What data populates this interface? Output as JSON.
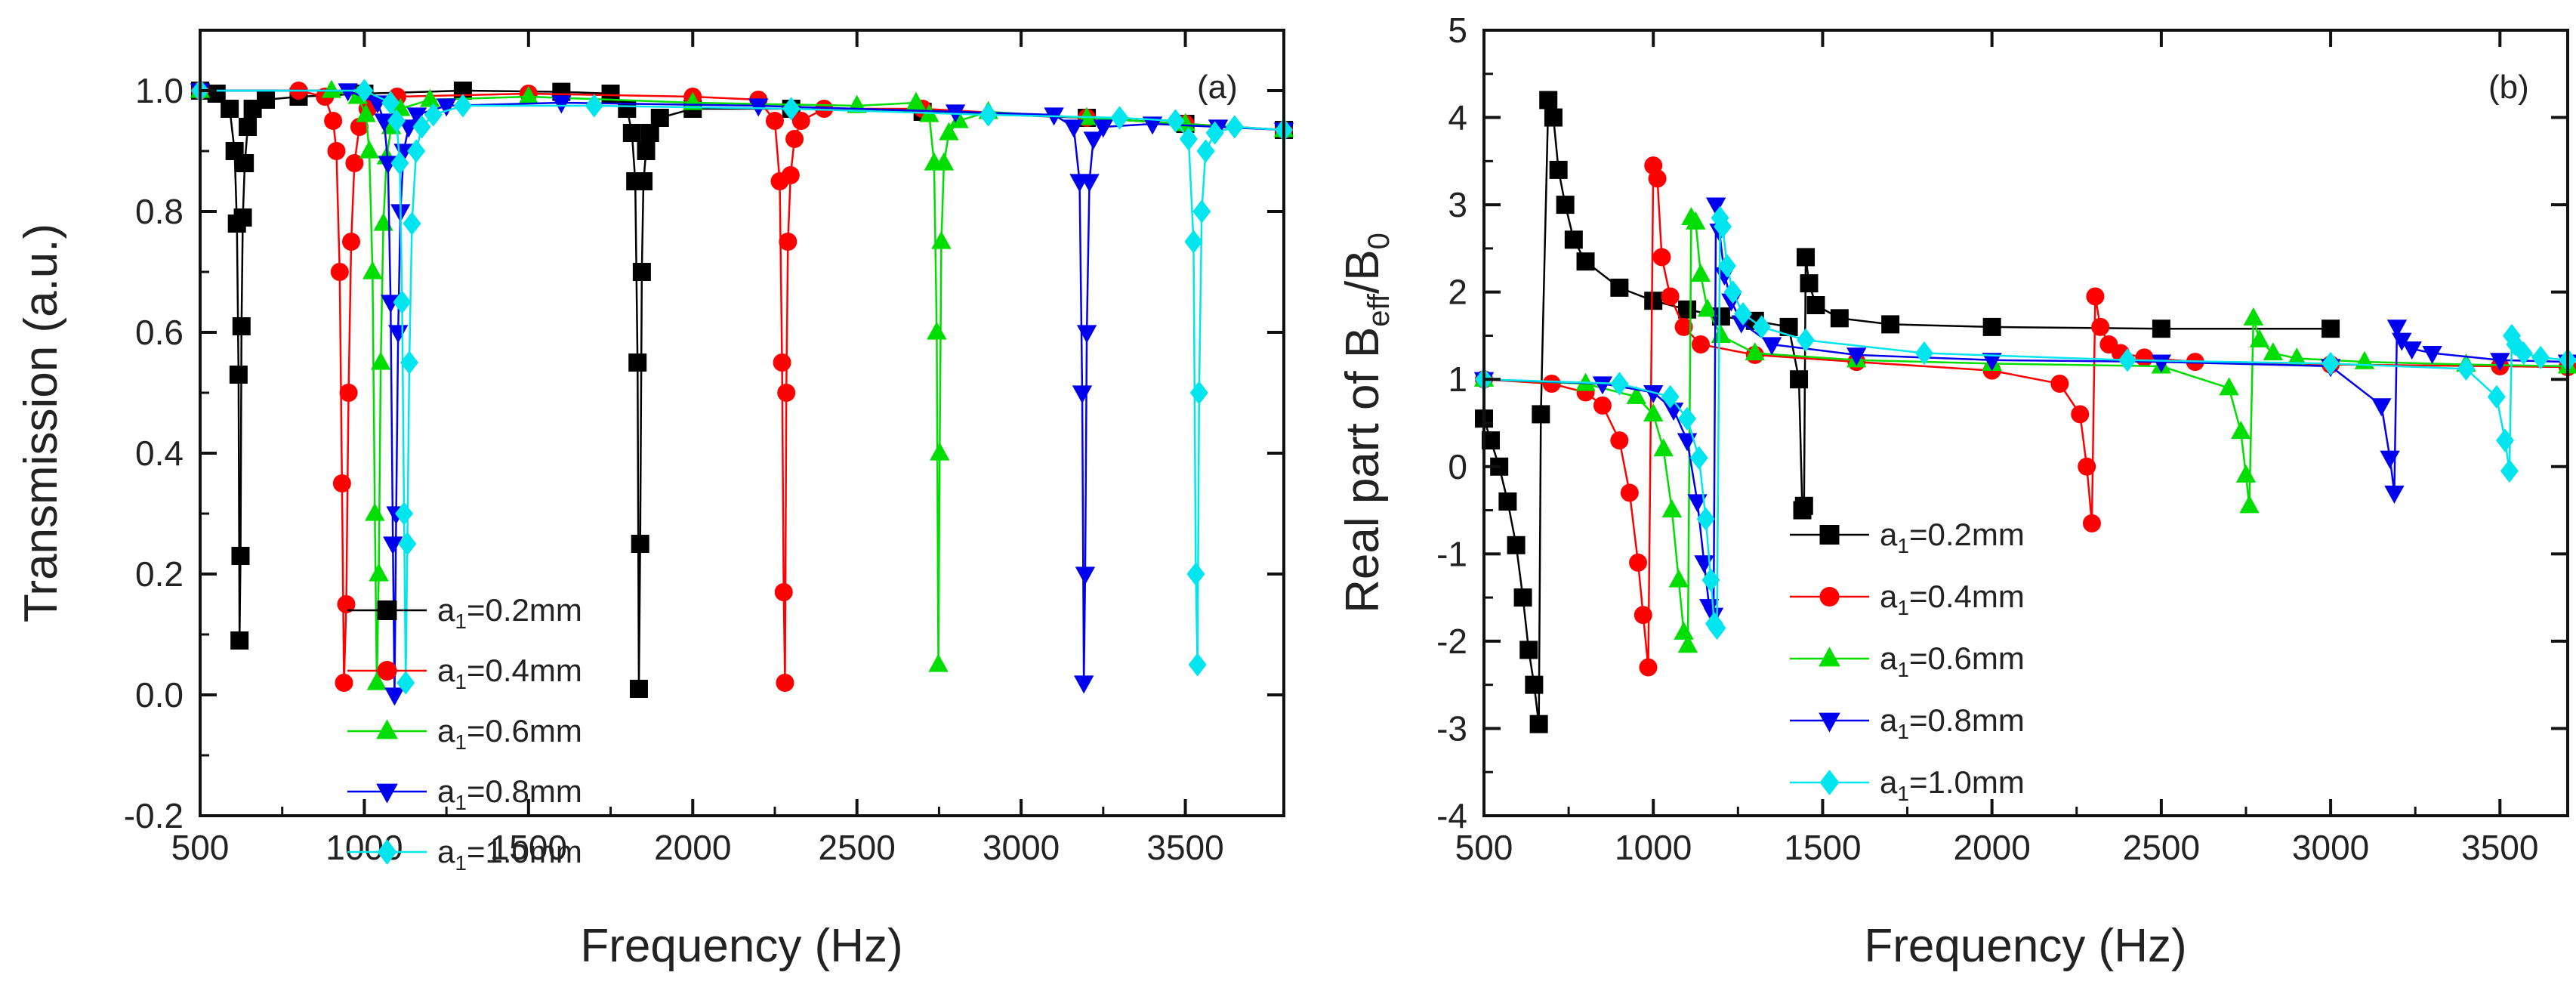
{
  "chart_data": [
    {
      "type": "line",
      "panel_label": "(a)",
      "title": "",
      "xlabel": "Frequency (Hz)",
      "ylabel": "Transmission (a.u.)",
      "xlim": [
        500,
        3800
      ],
      "ylim": [
        -0.2,
        1.1
      ],
      "xticks": [
        500,
        1000,
        1500,
        2000,
        2500,
        3000,
        3500
      ],
      "yticks": [
        -0.2,
        0.0,
        0.2,
        0.4,
        0.6,
        0.8,
        1.0
      ],
      "xtick_labels": [
        "500",
        "1000",
        "1500",
        "2000",
        "2500",
        "3000",
        "3500"
      ],
      "ytick_labels": [
        "-0.2",
        "0.0",
        "0.2",
        "0.4",
        "0.6",
        "0.8",
        "1.0"
      ],
      "legend_location": "lower-left",
      "series": [
        {
          "name": "a1=0.2mm",
          "label_main": "a",
          "label_sub": "1",
          "label_rest": "=0.2mm",
          "color": "#000000",
          "marker": "square",
          "x": [
            500,
            550,
            590,
            605,
            612,
            617,
            620,
            623,
            626,
            630,
            636,
            645,
            660,
            700,
            800,
            1000,
            1300,
            1600,
            1750,
            1800,
            1815,
            1825,
            1832,
            1836,
            1840,
            1845,
            1850,
            1858,
            1870,
            1900,
            2000,
            2300,
            2700,
            3200,
            3500,
            3800
          ],
          "y": [
            1.0,
            0.995,
            0.97,
            0.9,
            0.78,
            0.53,
            0.09,
            0.23,
            0.61,
            0.79,
            0.88,
            0.94,
            0.97,
            0.985,
            0.99,
            0.995,
            1.0,
            0.998,
            0.995,
            0.97,
            0.93,
            0.85,
            0.55,
            0.01,
            0.25,
            0.7,
            0.85,
            0.9,
            0.93,
            0.955,
            0.97,
            0.97,
            0.965,
            0.955,
            0.945,
            0.935
          ]
        },
        {
          "name": "a1=0.4mm",
          "label_main": "a",
          "label_sub": "1",
          "label_rest": "=0.4mm",
          "color": "#ff0000",
          "marker": "circle",
          "x": [
            500,
            800,
            880,
            905,
            915,
            925,
            932,
            938,
            945,
            952,
            960,
            970,
            985,
            1010,
            1100,
            1500,
            2000,
            2200,
            2250,
            2265,
            2272,
            2277,
            2281,
            2285,
            2290,
            2298,
            2310,
            2330,
            2400,
            2700,
            3200,
            3500,
            3800
          ],
          "y": [
            1.0,
            1.0,
            0.99,
            0.95,
            0.9,
            0.7,
            0.35,
            0.02,
            0.15,
            0.5,
            0.75,
            0.88,
            0.94,
            0.97,
            0.99,
            0.995,
            0.99,
            0.985,
            0.95,
            0.85,
            0.55,
            0.17,
            0.02,
            0.5,
            0.75,
            0.86,
            0.92,
            0.95,
            0.97,
            0.97,
            0.955,
            0.945,
            0.935
          ]
        },
        {
          "name": "a1=0.6mm",
          "label_main": "a",
          "label_sub": "1",
          "label_rest": "=0.6mm",
          "color": "#00dd00",
          "marker": "triangle-up",
          "x": [
            500,
            900,
            980,
            1005,
            1015,
            1025,
            1032,
            1038,
            1044,
            1050,
            1058,
            1068,
            1082,
            1110,
            1200,
            1500,
            2000,
            2500,
            2680,
            2720,
            2735,
            2743,
            2748,
            2752,
            2757,
            2765,
            2780,
            2810,
            2900,
            3200,
            3500,
            3800
          ],
          "y": [
            1.0,
            1.0,
            0.99,
            0.96,
            0.9,
            0.7,
            0.3,
            0.02,
            0.2,
            0.55,
            0.78,
            0.89,
            0.94,
            0.97,
            0.985,
            0.99,
            0.98,
            0.975,
            0.98,
            0.96,
            0.88,
            0.6,
            0.05,
            0.4,
            0.75,
            0.88,
            0.93,
            0.95,
            0.965,
            0.955,
            0.945,
            0.935
          ]
        },
        {
          "name": "a1=0.8mm",
          "label_main": "a",
          "label_sub": "1",
          "label_rest": "=0.8mm",
          "color": "#0000ee",
          "marker": "triangle-down",
          "x": [
            500,
            950,
            1040,
            1060,
            1072,
            1080,
            1087,
            1092,
            1097,
            1103,
            1110,
            1120,
            1135,
            1160,
            1250,
            1600,
            2200,
            2800,
            3100,
            3160,
            3178,
            3186,
            3191,
            3195,
            3200,
            3208,
            3220,
            3250,
            3400,
            3600,
            3800
          ],
          "y": [
            1.0,
            1.0,
            0.98,
            0.95,
            0.88,
            0.65,
            0.25,
            0.0,
            0.3,
            0.6,
            0.8,
            0.9,
            0.94,
            0.96,
            0.975,
            0.98,
            0.975,
            0.965,
            0.96,
            0.94,
            0.85,
            0.5,
            0.02,
            0.2,
            0.6,
            0.85,
            0.92,
            0.94,
            0.945,
            0.94,
            0.935
          ]
        },
        {
          "name": "a1=1.0mm",
          "label_main": "a",
          "label_sub": "1",
          "label_rest": "=1.0mm",
          "color": "#00e5ee",
          "marker": "diamond",
          "x": [
            500,
            1000,
            1080,
            1098,
            1108,
            1115,
            1121,
            1126,
            1131,
            1137,
            1145,
            1158,
            1175,
            1210,
            1300,
            1700,
            2300,
            2900,
            3300,
            3470,
            3510,
            3525,
            3532,
            3537,
            3542,
            3550,
            3562,
            3590,
            3650,
            3800
          ],
          "y": [
            1.0,
            1.0,
            0.98,
            0.95,
            0.88,
            0.65,
            0.3,
            0.02,
            0.25,
            0.55,
            0.78,
            0.9,
            0.94,
            0.96,
            0.975,
            0.975,
            0.97,
            0.96,
            0.955,
            0.95,
            0.92,
            0.75,
            0.2,
            0.05,
            0.5,
            0.8,
            0.9,
            0.93,
            0.94,
            0.935
          ]
        }
      ]
    },
    {
      "type": "line",
      "panel_label": "(b)",
      "title": "",
      "xlabel": "Frequency (Hz)",
      "ylabel_parts": {
        "a": "Real part of B",
        "b": "eff",
        "c": "/B",
        "d": "0"
      },
      "xlim": [
        500,
        3700
      ],
      "ylim": [
        -4,
        5
      ],
      "xticks": [
        500,
        1000,
        1500,
        2000,
        2500,
        3000,
        3500
      ],
      "yticks": [
        -4,
        -3,
        -2,
        -1,
        0,
        1,
        2,
        3,
        4,
        5
      ],
      "xtick_labels": [
        "500",
        "1000",
        "1500",
        "2000",
        "2500",
        "3000",
        "3500"
      ],
      "ytick_labels": [
        "-4",
        "-3",
        "-2",
        "-1",
        "0",
        "1",
        "2",
        "3",
        "4",
        "5"
      ],
      "legend_location": "lower-center",
      "series": [
        {
          "name": "a1=0.2mm",
          "label_main": "a",
          "label_sub": "1",
          "label_rest": "=0.2mm",
          "color": "#000000",
          "marker": "square",
          "x": [
            500,
            520,
            545,
            570,
            595,
            615,
            632,
            648,
            662,
            668,
            690,
            705,
            720,
            740,
            765,
            800,
            900,
            1000,
            1100,
            1200,
            1300,
            1400,
            1430,
            1440,
            1445,
            1450,
            1460,
            1480,
            1550,
            1700,
            2000,
            2500,
            3000
          ],
          "y": [
            0.55,
            0.3,
            0.0,
            -0.4,
            -0.9,
            -1.5,
            -2.1,
            -2.5,
            -2.95,
            0.6,
            4.2,
            4.0,
            3.4,
            3.0,
            2.6,
            2.35,
            2.05,
            1.9,
            1.8,
            1.72,
            1.67,
            1.6,
            1.0,
            -0.5,
            -0.45,
            2.4,
            2.1,
            1.85,
            1.7,
            1.63,
            1.6,
            1.58,
            1.58
          ]
        },
        {
          "name": "a1=0.4mm",
          "label_main": "a",
          "label_sub": "1",
          "label_rest": "=0.4mm",
          "color": "#ff0000",
          "marker": "circle",
          "x": [
            500,
            700,
            800,
            850,
            900,
            930,
            955,
            970,
            985,
            1000,
            1012,
            1025,
            1050,
            1090,
            1140,
            1300,
            1600,
            2000,
            2200,
            2260,
            2280,
            2295,
            2305,
            2320,
            2345,
            2380,
            2450,
            2600,
            3000,
            3500,
            3700
          ],
          "y": [
            1.0,
            0.95,
            0.85,
            0.7,
            0.3,
            -0.3,
            -1.1,
            -1.7,
            -2.3,
            3.45,
            3.3,
            2.4,
            1.95,
            1.6,
            1.4,
            1.28,
            1.2,
            1.1,
            0.95,
            0.6,
            0.0,
            -0.65,
            1.95,
            1.6,
            1.4,
            1.3,
            1.25,
            1.2,
            1.17,
            1.15,
            1.14
          ]
        },
        {
          "name": "a1=0.6mm",
          "label_main": "a",
          "label_sub": "1",
          "label_rest": "=0.6mm",
          "color": "#00dd00",
          "marker": "triangle-up",
          "x": [
            500,
            800,
            950,
            1000,
            1030,
            1055,
            1075,
            1090,
            1102,
            1112,
            1125,
            1140,
            1160,
            1200,
            1300,
            1600,
            2000,
            2500,
            2700,
            2735,
            2750,
            2760,
            2772,
            2790,
            2830,
            2900,
            3100,
            3400,
            3700
          ],
          "y": [
            1.0,
            0.95,
            0.8,
            0.6,
            0.2,
            -0.5,
            -1.3,
            -1.9,
            -2.05,
            2.85,
            2.8,
            2.2,
            1.8,
            1.5,
            1.3,
            1.22,
            1.18,
            1.15,
            0.9,
            0.4,
            -0.1,
            -0.45,
            1.7,
            1.45,
            1.3,
            1.24,
            1.2,
            1.17,
            1.15
          ]
        },
        {
          "name": "a1=0.8mm",
          "label_main": "a",
          "label_sub": "1",
          "label_rest": "=0.8mm",
          "color": "#0000ee",
          "marker": "triangle-down",
          "x": [
            500,
            850,
            1000,
            1060,
            1100,
            1130,
            1150,
            1165,
            1178,
            1185,
            1195,
            1210,
            1230,
            1260,
            1350,
            1600,
            2000,
            2500,
            3000,
            3150,
            3175,
            3188,
            3196,
            3210,
            3240,
            3300,
            3500,
            3700
          ],
          "y": [
            1.0,
            0.95,
            0.85,
            0.65,
            0.3,
            -0.4,
            -1.1,
            -1.6,
            -1.7,
            3.0,
            2.7,
            2.2,
            1.9,
            1.65,
            1.4,
            1.28,
            1.22,
            1.2,
            1.15,
            0.7,
            0.1,
            -0.3,
            1.6,
            1.45,
            1.35,
            1.3,
            1.22,
            1.2
          ]
        },
        {
          "name": "a1=1.0mm",
          "label_main": "a",
          "label_sub": "1",
          "label_rest": "=1.0mm",
          "color": "#00e5ee",
          "marker": "diamond",
          "x": [
            500,
            900,
            1050,
            1100,
            1135,
            1155,
            1170,
            1180,
            1188,
            1197,
            1205,
            1218,
            1235,
            1265,
            1320,
            1450,
            1800,
            2400,
            3000,
            3400,
            3490,
            3515,
            3528,
            3535,
            3545,
            3570,
            3620,
            3700
          ],
          "y": [
            1.0,
            0.95,
            0.8,
            0.55,
            0.1,
            -0.6,
            -1.3,
            -1.8,
            -1.85,
            2.85,
            2.75,
            2.3,
            2.0,
            1.75,
            1.6,
            1.45,
            1.3,
            1.22,
            1.18,
            1.12,
            0.8,
            0.3,
            -0.05,
            1.5,
            1.4,
            1.3,
            1.25,
            1.22
          ]
        }
      ]
    }
  ]
}
